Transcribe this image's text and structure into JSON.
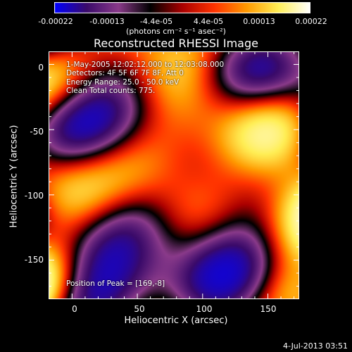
{
  "chart_data": {
    "type": "heatmap",
    "title": "Reconstructed RHESSI Image",
    "xlabel": "Heliocentric X (arcsec)",
    "ylabel": "Heliocentric Y (arcsec)",
    "xlim": [
      -18,
      174
    ],
    "ylim": [
      -180,
      10
    ],
    "x_ticks": [
      "0",
      "50",
      "100",
      "150"
    ],
    "y_ticks": [
      "0",
      "-50",
      "-100",
      "-150"
    ],
    "colorbar": {
      "min": -0.00022,
      "max": 0.00022,
      "tick_labels": [
        "-0.00022",
        "-0.00013",
        "-4.4e-05",
        "4.4e-05",
        "0.00013",
        "0.00022"
      ],
      "units_label": "(photons cm⁻² s⁻¹ asec⁻²)"
    },
    "annotations": [
      "1-May-2005 12:02:12.000 to 12:03:08.000",
      "Detectors: 4F 5F 6F 7F 8F, Att 0",
      "Energy Range: 25.0 - 50.0 keV",
      "Clean    Total counts: 775."
    ],
    "peak_text": "Position of Peak = [169,-8]",
    "colors": [
      "#0000ff",
      "#3a0a6a",
      "#8a3a8a",
      "#000000",
      "#aa0000",
      "#ff3300",
      "#ff9900",
      "#ffee55",
      "#ffffff"
    ]
  },
  "footer": "4-Jul-2013 03:51"
}
